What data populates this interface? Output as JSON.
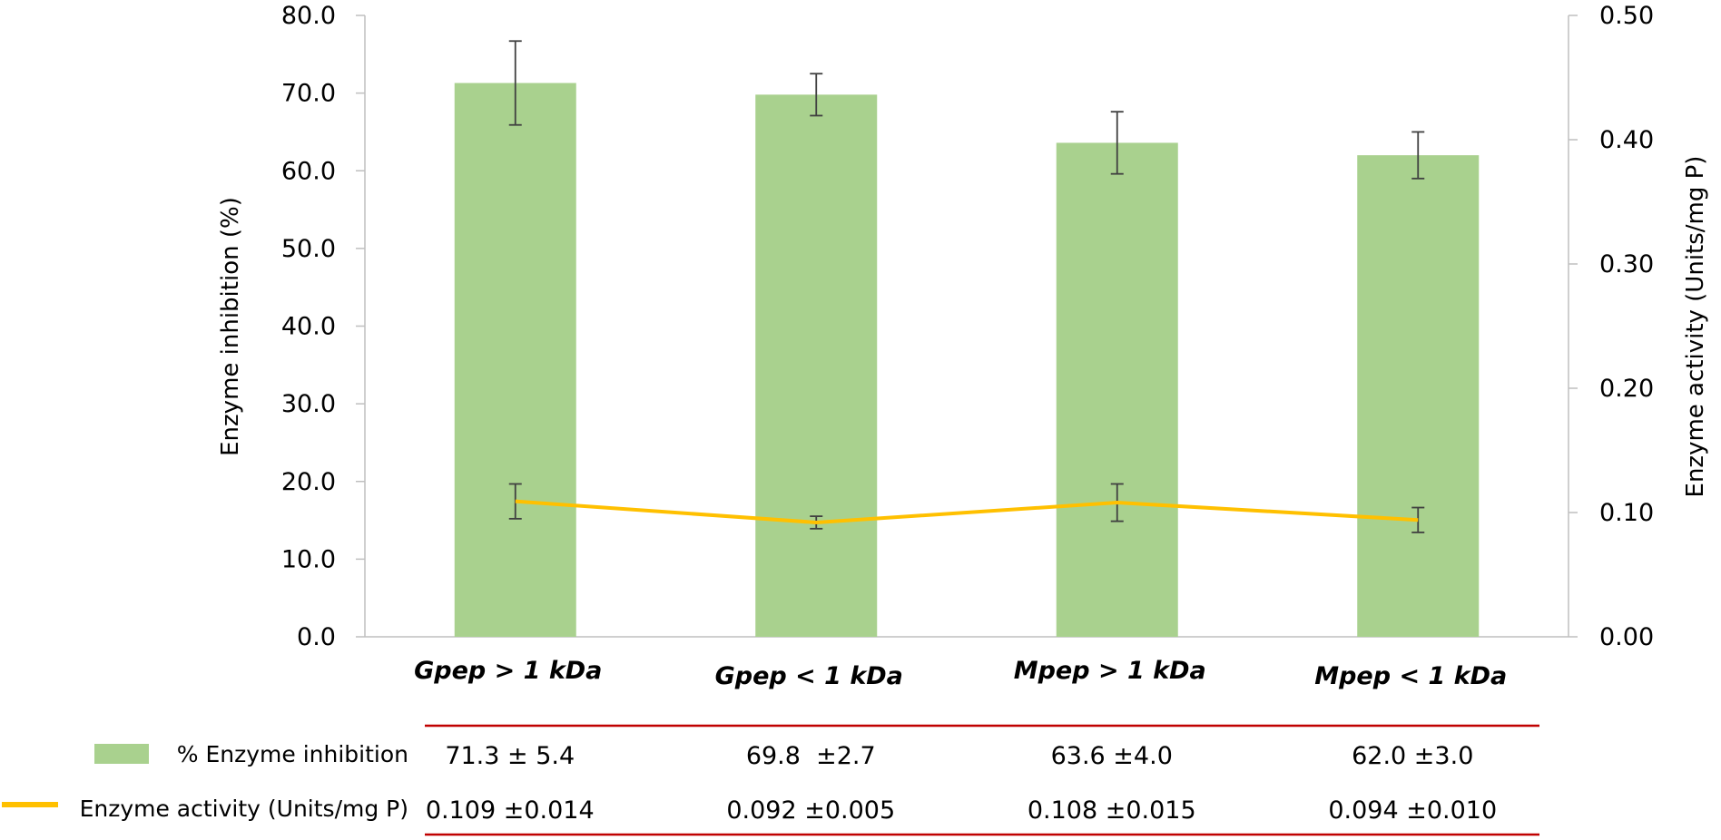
{
  "chart_data": {
    "type": "bar",
    "categories": [
      "Gpep > 1 kDa",
      "Gpep < 1 kDa",
      "Mpep > 1 kDa",
      "Mpep < 1 kDa"
    ],
    "series": [
      {
        "name": "% Enzyme inhibition",
        "type": "bar",
        "axis": "left",
        "values": [
          71.3,
          69.8,
          63.6,
          62.0
        ],
        "errors": [
          5.4,
          2.7,
          4.0,
          3.0
        ],
        "color": "#a9d18e"
      },
      {
        "name": "Enzyme activity (Units/mg P)",
        "type": "line",
        "axis": "right",
        "values": [
          0.109,
          0.092,
          0.108,
          0.094
        ],
        "errors": [
          0.014,
          0.005,
          0.015,
          0.01
        ],
        "color": "#ffc000"
      }
    ],
    "ylabel": "Enzyme inhibition (%)",
    "y2label": "Enzyme activity (Units/mg P)",
    "ylim": [
      0,
      80
    ],
    "y2lim": [
      0,
      0.5
    ],
    "yticks": [
      "0.0",
      "10.0",
      "20.0",
      "30.0",
      "40.0",
      "50.0",
      "60.0",
      "70.0",
      "80.0"
    ],
    "y2ticks": [
      "0.00",
      "0.10",
      "0.20",
      "0.30",
      "0.40",
      "0.50"
    ],
    "grid": false,
    "legend": "bottom-left, as data table",
    "data_table": {
      "rows": [
        {
          "legend": "% Enzyme inhibition",
          "cells": [
            "71.3 ± 5.4",
            "69.8  ±2.7",
            "63.6 ±4.0",
            "62.0 ±3.0"
          ]
        },
        {
          "legend": "Enzyme activity (Units/mg P)",
          "cells": [
            "0.109 ±0.014",
            "0.092 ±0.005",
            "0.108 ±0.015",
            "0.094 ±0.010"
          ]
        }
      ],
      "rule_color": "#c00000"
    }
  }
}
